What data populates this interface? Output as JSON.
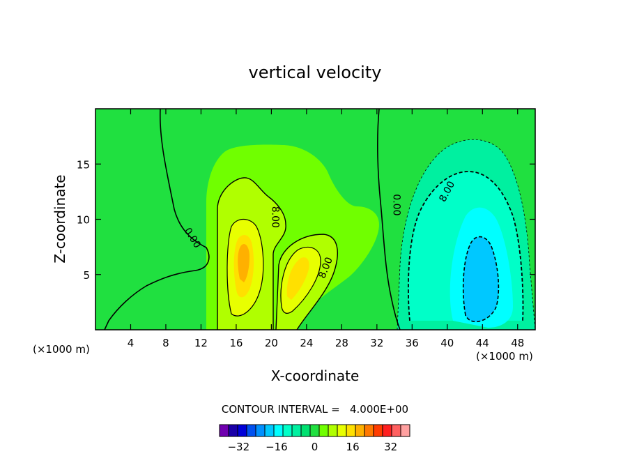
{
  "chart_data": {
    "type": "contour",
    "title": "vertical velocity",
    "xlabel": "X-coordinate",
    "ylabel": "Z-coordinate",
    "x_unit_left": "(×1000 m)",
    "x_unit_right": "(×1000 m)",
    "xlim": [
      0,
      50
    ],
    "ylim": [
      0,
      20
    ],
    "x_ticks": [
      4,
      8,
      12,
      16,
      20,
      24,
      28,
      32,
      36,
      40,
      44,
      48
    ],
    "y_ticks": [
      5,
      10,
      15
    ],
    "contour_interval_text": "CONTOUR INTERVAL =   4.000E+00",
    "contour_labels": [
      {
        "text": "0.00",
        "x": 11,
        "z": 8.3,
        "angle": 58
      },
      {
        "text": "8.00",
        "x": 20.4,
        "z": 10.2,
        "angle": 90
      },
      {
        "text": "8.00",
        "x": 26.2,
        "z": 5.6,
        "angle": -68
      },
      {
        "text": "0.00",
        "x": 34.2,
        "z": 11.3,
        "angle": 90
      },
      {
        "text": "8.00",
        "x": 40,
        "z": 12.5,
        "angle": -62
      }
    ],
    "colorbar": {
      "levels": [
        -40,
        -36,
        -32,
        -28,
        -24,
        -20,
        -16,
        -12,
        -8,
        -4,
        0,
        4,
        8,
        12,
        16,
        20,
        24,
        28,
        32,
        36,
        40
      ],
      "colors": [
        "#7000b0",
        "#1a00a8",
        "#0000d8",
        "#0050f0",
        "#0090ff",
        "#00c8ff",
        "#00ffff",
        "#00ffc8",
        "#00f0a0",
        "#00e070",
        "#20e040",
        "#70ff00",
        "#b0ff00",
        "#e8ff00",
        "#ffe000",
        "#ffb000",
        "#ff7800",
        "#ff3c00",
        "#ff2020",
        "#ff6060",
        "#ffa0a0"
      ],
      "tick_labels": [
        "-32",
        "-16",
        "0",
        "16",
        "32"
      ],
      "tick_values": [
        -32,
        -16,
        0,
        16,
        32
      ]
    },
    "grid": false
  }
}
